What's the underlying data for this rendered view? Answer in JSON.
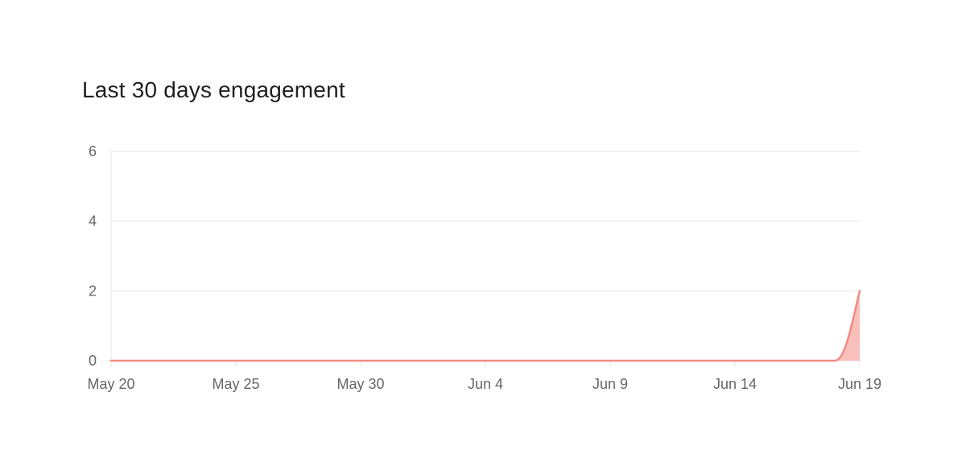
{
  "chart_data": {
    "type": "area",
    "title": "Last 30 days engagement",
    "xlabel": "",
    "ylabel": "",
    "x": [
      "May 20",
      "May 21",
      "May 22",
      "May 23",
      "May 24",
      "May 25",
      "May 26",
      "May 27",
      "May 28",
      "May 29",
      "May 30",
      "May 31",
      "Jun 1",
      "Jun 2",
      "Jun 3",
      "Jun 4",
      "Jun 5",
      "Jun 6",
      "Jun 7",
      "Jun 8",
      "Jun 9",
      "Jun 10",
      "Jun 11",
      "Jun 12",
      "Jun 13",
      "Jun 14",
      "Jun 15",
      "Jun 16",
      "Jun 17",
      "Jun 18",
      "Jun 19"
    ],
    "series": [
      {
        "values": [
          0,
          0,
          0,
          0,
          0,
          0,
          0,
          0,
          0,
          0,
          0,
          0,
          0,
          0,
          0,
          0,
          0,
          0,
          0,
          0,
          0,
          0,
          0,
          0,
          0,
          0,
          0,
          0,
          0,
          0,
          2
        ],
        "color": "#f28b82",
        "fill": "#f9c0bb"
      }
    ],
    "x_tick_labels": [
      "May 20",
      "May 25",
      "May 30",
      "Jun 4",
      "Jun 9",
      "Jun 14",
      "Jun 19"
    ],
    "y_ticks": [
      0,
      2,
      4,
      6
    ],
    "ylim": [
      0,
      6
    ],
    "grid": true,
    "legend": "none",
    "colors": {
      "grid": "#e6e6e6",
      "tick_label": "#666666",
      "line": "#f28b82",
      "area": "#f9c0bb"
    }
  }
}
